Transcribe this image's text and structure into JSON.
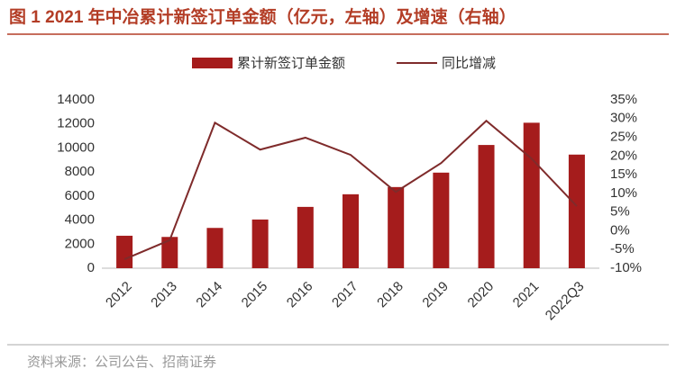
{
  "chart_data": {
    "type": "bar_line",
    "title": "图 1 2021 年中冶累计新签订单金额（亿元，左轴）及增速（右轴）",
    "source": "资料来源：公司公告、招商证券",
    "categories": [
      "2012",
      "2013",
      "2014",
      "2015",
      "2016",
      "2017",
      "2018",
      "2019",
      "2020",
      "2021",
      "2022Q3"
    ],
    "series": [
      {
        "name": "累计新签订单金额",
        "type": "bar",
        "color": "#a51c1c",
        "values": [
          2700,
          2600,
          3350,
          4050,
          5100,
          6150,
          6750,
          7950,
          10250,
          12100,
          9450
        ]
      },
      {
        "name": "同比增减",
        "type": "line",
        "color": "#7f2b2b",
        "axis": "y2",
        "values": [
          -7.6,
          -2.5,
          28.9,
          21.7,
          24.9,
          20.3,
          10.4,
          18.1,
          29.4,
          19.3,
          6.6
        ]
      }
    ],
    "ylim": [
      0,
      14000
    ],
    "yticks": [
      0,
      2000,
      4000,
      6000,
      8000,
      10000,
      12000,
      14000
    ],
    "y2lim": [
      -10,
      35
    ],
    "y2ticks": [
      {
        "value": -10,
        "label": "-10%"
      },
      {
        "value": -5,
        "label": "-5%"
      },
      {
        "value": 0,
        "label": "0%"
      },
      {
        "value": 5,
        "label": "5%"
      },
      {
        "value": 10,
        "label": "10%"
      },
      {
        "value": 15,
        "label": "15%"
      },
      {
        "value": 20,
        "label": "20%"
      },
      {
        "value": 25,
        "label": "25%"
      },
      {
        "value": 30,
        "label": "30%"
      },
      {
        "value": 35,
        "label": "35%"
      }
    ]
  }
}
